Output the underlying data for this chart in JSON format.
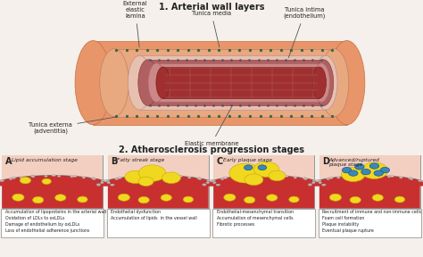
{
  "title1": "1. Arterial wall layers",
  "title2": "2. Atherosclerosis progression stages",
  "bg_color": "#f5f0eb",
  "artery_adventitia": "#e8956a",
  "artery_media": "#e0805a",
  "artery_intima": "#cc5050",
  "artery_lumen_pink": "#d08888",
  "artery_lumen_dark": "#b03030",
  "artery_inner_pink": "#e8b0a0",
  "tissue_bg": "#f0d8c8",
  "blood_red": "#c43030",
  "yellow": "#f0d820",
  "yellow_edge": "#c8aa00",
  "blue_cell": "#3a88b8",
  "blue_edge": "#1a5888",
  "endothelial_fill": "#e8c8c0",
  "endothelial_edge": "#9090a0",
  "label_color": "#222222",
  "stage_labels": [
    "A",
    "B",
    "C",
    "D"
  ],
  "stage_titles": [
    "Lipid accumulation stage",
    "Fatty streak stage",
    "Early plaque stage",
    "Advanced/ruptured\nplaque stage"
  ],
  "stage_texts": [
    "Accumulation of lipoproteins in the arterial wall\nOxidation of LDLs to oxLDLs\nDamage of endothelium by oxLDLs\nLoss of endothelial adherence junctions",
    "Endothelial dysfunction\nAccumulation of lipids  in the vessel wall",
    "Endothelial-mesenchymal transition\nAccumulation of mesenchymal cells\nFibrotic processes",
    "Recruitment of immune and non-immune cells\nFoam cell formation\nPlaque instability\nEventual plaque rupture"
  ],
  "artery_labels": [
    "External\nelastic\nlamina",
    "Tunica media",
    "Tunica intima\n(endothelium)",
    "Tunica externa\n(adventitia)",
    "Elastic membrane"
  ]
}
